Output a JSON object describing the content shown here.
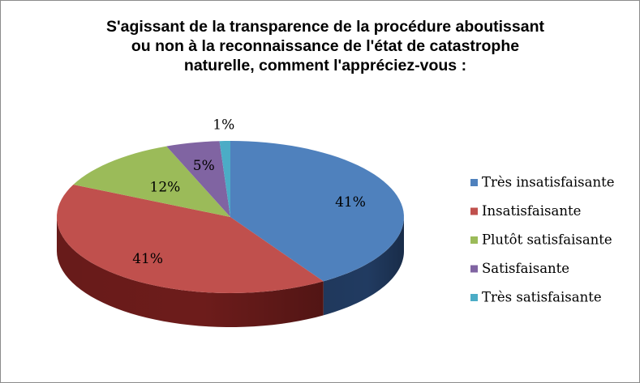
{
  "chart_data": {
    "type": "pie",
    "title": "S'agissant de la transparence de la procédure aboutissant ou non à la reconnaissance de l'état de catastrophe naturelle, comment l'appréciez-vous :",
    "title_lines": [
      "S'agissant de la transparence de la procédure aboutissant",
      "ou non à la reconnaissance de l'état de catastrophe",
      "naturelle, comment l'appréciez-vous :"
    ],
    "style": "3d",
    "legend_position": "right",
    "categories": [
      "Très insatisfaisante",
      "Insatisfaisante",
      "Plutôt satisfaisante",
      "Satisfaisante",
      "Très satisfaisante"
    ],
    "values": [
      41,
      41,
      12,
      5,
      1
    ],
    "labels": [
      "41%",
      "41%",
      "12%",
      "5%",
      "1%"
    ],
    "colors": [
      "#4f81bd",
      "#c0504d",
      "#9bbb59",
      "#8064a2",
      "#4bacc6"
    ],
    "side_colors": [
      "#213b61",
      "#6d1c1b",
      "#56712c",
      "#463462",
      "#237d94"
    ]
  }
}
